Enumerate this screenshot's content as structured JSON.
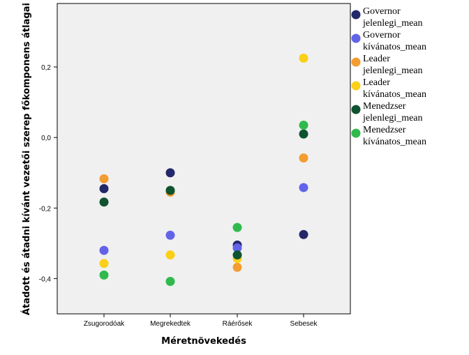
{
  "chart_data": {
    "type": "scatter",
    "title": "",
    "xlabel": "Méretnövekedés",
    "ylabel": "Átadott és átadni kívánt vezetői szerep főkomponens átlagai",
    "categories": [
      "Zsugorodóak",
      "Megrekedtek",
      "Ráérősek",
      "Sebesek"
    ],
    "ylim": [
      -0.5,
      0.38
    ],
    "yticks": [
      0.2,
      0.0,
      -0.2,
      -0.4
    ],
    "ytick_labels": [
      "0,2",
      "0,0",
      "-0,2",
      "-0,4"
    ],
    "grid": false,
    "legend_position": "right",
    "series": [
      {
        "name": [
          "Governor",
          "jelenlegi_mean"
        ],
        "color": "#23286b",
        "values": [
          -0.145,
          -0.1,
          -0.305,
          -0.275
        ]
      },
      {
        "name": [
          "Governor",
          "kívánatos_mean"
        ],
        "color": "#6363ea",
        "values": [
          -0.32,
          -0.277,
          -0.313,
          -0.142
        ]
      },
      {
        "name": [
          "Leader",
          "jelenlegi_mean"
        ],
        "color": "#f39c30",
        "values": [
          -0.117,
          -0.155,
          -0.368,
          -0.058
        ]
      },
      {
        "name": [
          "Leader",
          "kívánatos_mean"
        ],
        "color": "#fccf18",
        "values": [
          -0.357,
          -0.333,
          -0.343,
          0.225
        ]
      },
      {
        "name": [
          "Menedzser",
          "jelenlegi_mean"
        ],
        "color": "#0f5330",
        "values": [
          -0.183,
          -0.15,
          -0.333,
          0.01
        ]
      },
      {
        "name": [
          "Menedzser",
          "kívánatos_mean"
        ],
        "color": "#30ba4d",
        "values": [
          -0.39,
          -0.408,
          -0.255,
          0.035
        ]
      }
    ]
  }
}
